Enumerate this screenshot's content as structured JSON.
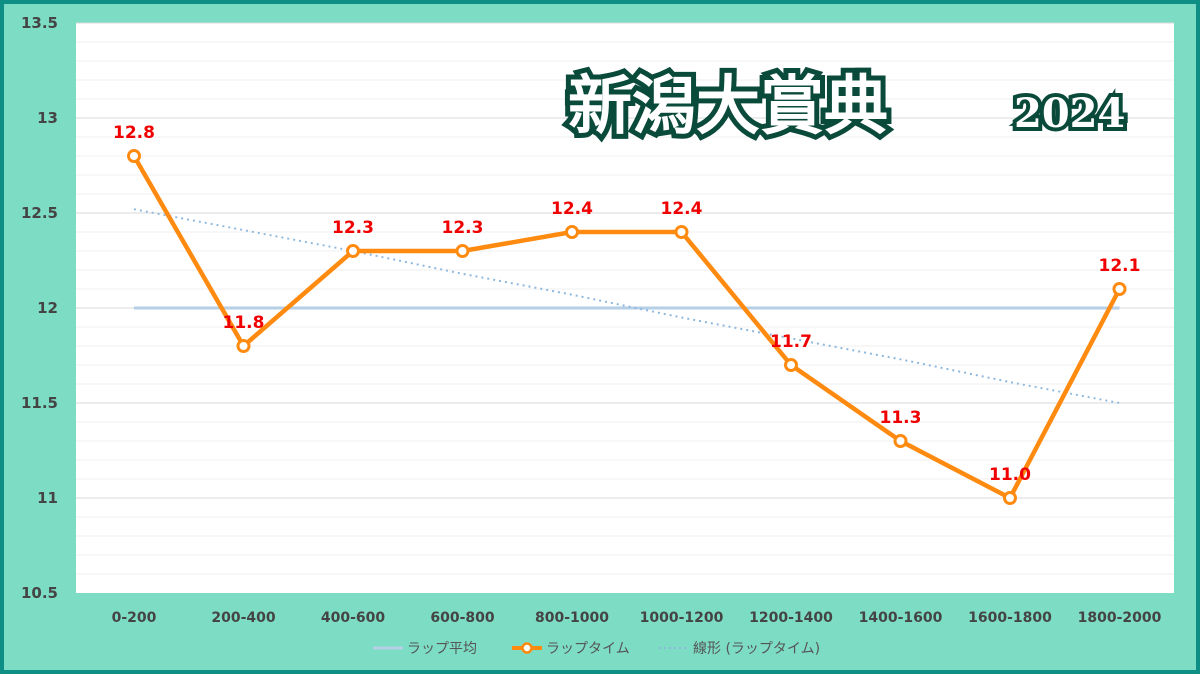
{
  "title": {
    "main": "新潟大賞典",
    "year": "2024"
  },
  "colors": {
    "background": "#7ddcc4",
    "border": "#0e8f86",
    "lap_line": "#ff8a10",
    "average_line": "#b4cfe6",
    "trend_line": "#8fb8de",
    "data_label": "#f00000"
  },
  "chart_data": {
    "type": "line",
    "categories": [
      "0-200",
      "200-400",
      "400-600",
      "600-800",
      "800-1000",
      "1000-1200",
      "1200-1400",
      "1400-1600",
      "1600-1800",
      "1800-2000"
    ],
    "series": [
      {
        "name": "ラップ平均",
        "values": [
          12.0,
          12.0,
          12.0,
          12.0,
          12.0,
          12.0,
          12.0,
          12.0,
          12.0,
          12.0
        ]
      },
      {
        "name": "ラップタイム",
        "values": [
          12.8,
          11.8,
          12.3,
          12.3,
          12.4,
          12.4,
          11.7,
          11.3,
          11.0,
          12.1
        ],
        "data_labels": [
          "12.8",
          "11.8",
          "12.3",
          "12.3",
          "12.4",
          "12.4",
          "11.7",
          "11.3",
          "11.0",
          "12.1"
        ]
      },
      {
        "name": "線形 (ラップタイム)",
        "values": [
          12.52,
          12.41,
          12.3,
          12.18,
          12.07,
          11.95,
          11.84,
          11.73,
          11.61,
          11.5
        ]
      }
    ],
    "y_ticks": [
      "10.5",
      "11",
      "11.5",
      "12",
      "12.5",
      "13",
      "13.5"
    ],
    "ylim": [
      10.5,
      13.5
    ],
    "grid": true,
    "legend_position": "bottom"
  }
}
